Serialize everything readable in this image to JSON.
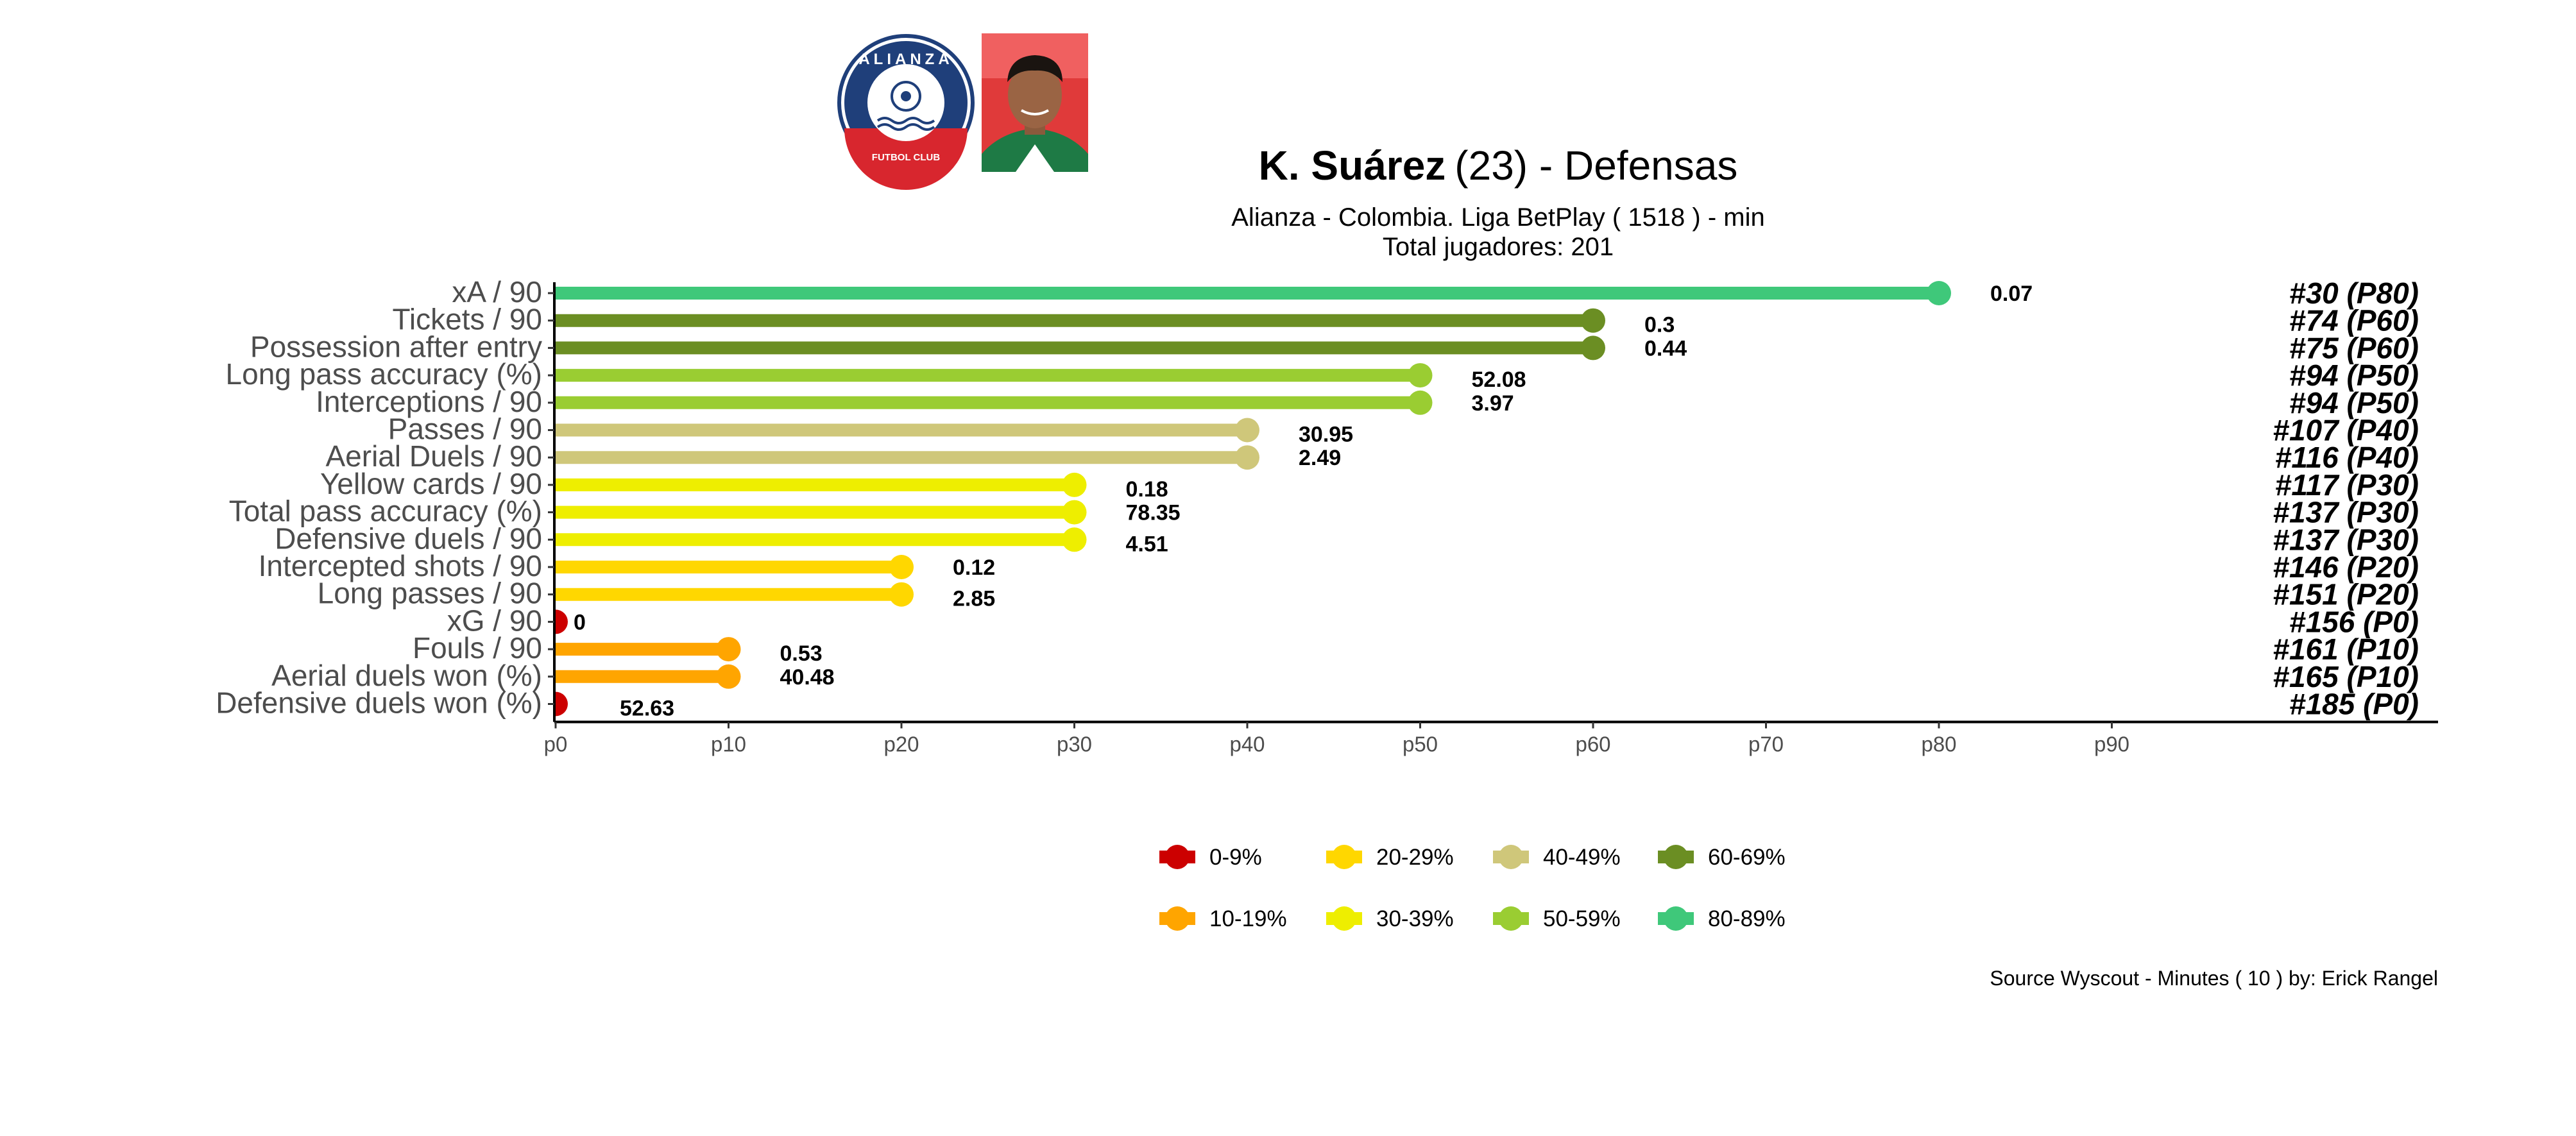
{
  "header": {
    "player_name": "K. Suárez",
    "age": "(23)",
    "position": " -  Defensas",
    "subtitle": "Alianza  -  Colombia. Liga BetPlay  ( 1518 ) - min",
    "total": "Total jugadores:  201",
    "club_logo_icon": "alianza-fc-crest-icon",
    "club_logo_text_top": "ALIANZA",
    "club_logo_text_bottom": "FUTBOL CLUB",
    "player_photo_icon": "player-headshot-icon"
  },
  "chart_data": {
    "type": "lollipop",
    "title": "K. Suárez (23) -  Defensas",
    "subtitle": "Alianza  -  Colombia. Liga BetPlay  ( 1518 ) - min",
    "x_ticks": [
      "p0",
      "p10",
      "p20",
      "p30",
      "p40",
      "p50",
      "p60",
      "p70",
      "p80",
      "p90"
    ],
    "xlim": [
      0,
      109
    ],
    "grid": false,
    "legend_position": "bottom",
    "rows": [
      {
        "metric": "xA / 90",
        "percentile": 80,
        "value": "0.07",
        "rank": "#30 (P80)",
        "color": "#3FC87A"
      },
      {
        "metric": "Tickets / 90",
        "percentile": 60,
        "value": "0.3",
        "rank": "#74 (P60)",
        "color": "#6B8E23"
      },
      {
        "metric": "Possession after entry",
        "percentile": 60,
        "value": "0.44",
        "rank": "#75 (P60)",
        "color": "#6B8E23"
      },
      {
        "metric": "Long pass accuracy (%)",
        "percentile": 50,
        "value": "52.08",
        "rank": "#94 (P50)",
        "color": "#9ACD32"
      },
      {
        "metric": "Interceptions / 90",
        "percentile": 50,
        "value": "3.97",
        "rank": "#94 (P50)",
        "color": "#9ACD32"
      },
      {
        "metric": "Passes / 90",
        "percentile": 40,
        "value": "30.95",
        "rank": "#107 (P40)",
        "color": "#CFC77A"
      },
      {
        "metric": "Aerial Duels / 90",
        "percentile": 40,
        "value": "2.49",
        "rank": "#116 (P40)",
        "color": "#CFC77A"
      },
      {
        "metric": "Yellow cards / 90",
        "percentile": 30,
        "value": "0.18",
        "rank": "#117 (P30)",
        "color": "#EEEE00"
      },
      {
        "metric": "Total pass accuracy (%)",
        "percentile": 30,
        "value": "78.35",
        "rank": "#137 (P30)",
        "color": "#EEEE00"
      },
      {
        "metric": "Defensive duels / 90",
        "percentile": 30,
        "value": "4.51",
        "rank": "#137 (P30)",
        "color": "#EEEE00"
      },
      {
        "metric": "Intercepted shots / 90",
        "percentile": 20,
        "value": "0.12",
        "rank": "#146 (P20)",
        "color": "#FFD700"
      },
      {
        "metric": "Long passes / 90",
        "percentile": 20,
        "value": "2.85",
        "rank": "#151 (P20)",
        "color": "#FFD700"
      },
      {
        "metric": "xG / 90",
        "percentile": 0,
        "value": "0",
        "rank": "#156 (P0)",
        "color": "#CC0000"
      },
      {
        "metric": "Fouls / 90",
        "percentile": 10,
        "value": "0.53",
        "rank": "#161 (P10)",
        "color": "#FFA500"
      },
      {
        "metric": "Aerial duels won (%)",
        "percentile": 10,
        "value": "40.48",
        "rank": "#165 (P10)",
        "color": "#FFA500"
      },
      {
        "metric": "Defensive duels won (%)",
        "percentile": 0,
        "value": "52.63",
        "rank": "#185 (P0)",
        "color": "#CC0000"
      }
    ],
    "legend": [
      {
        "label": "0-9%",
        "color": "#CC0000"
      },
      {
        "label": "10-19%",
        "color": "#FFA500"
      },
      {
        "label": "20-29%",
        "color": "#FFD700"
      },
      {
        "label": "30-39%",
        "color": "#EEEE00"
      },
      {
        "label": "40-49%",
        "color": "#CFC77A"
      },
      {
        "label": "50-59%",
        "color": "#9ACD32"
      },
      {
        "label": "60-69%",
        "color": "#6B8E23"
      },
      {
        "label": "80-89%",
        "color": "#3FC87A"
      }
    ]
  },
  "footer": {
    "source": "Source Wyscout - Minutes ( 10 ) by: Erick Rangel"
  }
}
